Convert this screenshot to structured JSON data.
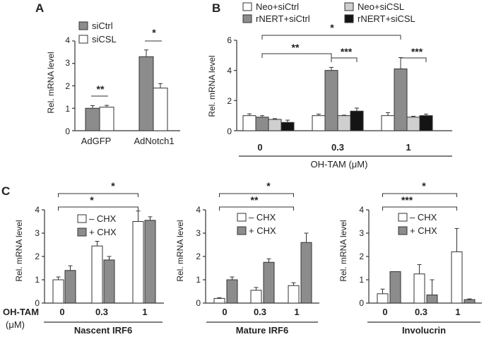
{
  "colors": {
    "white": "#ffffff",
    "mid_gray": "#8c8c8c",
    "light_gray": "#cfcfcf",
    "black": "#141414",
    "axis": "#333333"
  },
  "chart_data": [
    {
      "id": "A",
      "panel_label": "A",
      "type": "bar",
      "ylabel": "Rel. mRNA level",
      "ylim": [
        0,
        4
      ],
      "yticks": [
        "0",
        "1",
        "2",
        "3",
        "4"
      ],
      "categories": [
        "AdGFP",
        "AdNotch1"
      ],
      "series": [
        {
          "name": "siCtrl",
          "color": "#8c8c8c",
          "values": [
            1.0,
            3.3
          ],
          "errors": [
            0.12,
            0.3
          ]
        },
        {
          "name": "siCSL",
          "color": "#ffffff",
          "values": [
            1.05,
            1.9
          ],
          "errors": [
            0.08,
            0.2
          ]
        }
      ],
      "significance": [
        {
          "label": "**",
          "category": 0
        },
        {
          "label": "*",
          "category": 1
        }
      ]
    },
    {
      "id": "B",
      "panel_label": "B",
      "type": "bar",
      "ylabel": "Rel. mRNA level",
      "xlabel": "OH-TAM (μM)",
      "ylim": [
        0,
        6
      ],
      "yticks": [
        "0",
        "2",
        "4",
        "6"
      ],
      "categories": [
        "0",
        "0.3",
        "1"
      ],
      "series": [
        {
          "name": "Neo+siCtrl",
          "color": "#ffffff",
          "values": [
            1.0,
            1.0,
            1.0
          ],
          "errors": [
            0.12,
            0.1,
            0.2
          ]
        },
        {
          "name": "rNERT+siCtrl",
          "color": "#8c8c8c",
          "values": [
            0.9,
            4.0,
            4.1
          ],
          "errors": [
            0.1,
            0.2,
            0.75
          ]
        },
        {
          "name": "Neo+siCSL",
          "color": "#cfcfcf",
          "values": [
            0.75,
            1.0,
            0.9
          ],
          "errors": [
            0.05,
            0.03,
            0.06
          ]
        },
        {
          "name": "rNERT+siCSL",
          "color": "#141414",
          "values": [
            0.55,
            1.3,
            1.0
          ],
          "errors": [
            0.15,
            0.2,
            0.1
          ]
        }
      ],
      "significance": [
        {
          "label": "*",
          "type": "long"
        },
        {
          "label": "**",
          "type": "left"
        },
        {
          "label": "***",
          "type": "mid"
        },
        {
          "label": "***",
          "type": "right"
        }
      ]
    },
    {
      "id": "C1",
      "panel_label": "C",
      "type": "bar",
      "title": "Nascent IRF6",
      "ylabel": "Rel. mRNA level",
      "ylim": [
        0,
        4
      ],
      "yticks": [
        "0",
        "1",
        "2",
        "3",
        "4"
      ],
      "categories": [
        "0",
        "0.3",
        "1"
      ],
      "x_prefix": "OH-TAM",
      "x_prefix_unit": "(μM)",
      "series": [
        {
          "name": "– CHX",
          "color": "#ffffff",
          "values": [
            1.0,
            2.45,
            3.5
          ],
          "errors": [
            0.12,
            0.2,
            0.45
          ]
        },
        {
          "name": "+ CHX",
          "color": "#8c8c8c",
          "values": [
            1.4,
            1.85,
            3.55
          ],
          "errors": [
            0.2,
            0.15,
            0.15
          ]
        }
      ],
      "significance": [
        {
          "label": "*",
          "level": 1
        },
        {
          "label": "*",
          "level": 0
        }
      ]
    },
    {
      "id": "C2",
      "type": "bar",
      "title": "Mature IRF6",
      "ylabel": "Rel. mRNA level",
      "ylim": [
        0,
        4
      ],
      "yticks": [
        "0",
        "1",
        "2",
        "3",
        "4"
      ],
      "categories": [
        "0",
        "0.3",
        "1"
      ],
      "series": [
        {
          "name": "– CHX",
          "color": "#ffffff",
          "values": [
            0.2,
            0.55,
            0.75
          ],
          "errors": [
            0.03,
            0.12,
            0.12
          ]
        },
        {
          "name": "+ CHX",
          "color": "#8c8c8c",
          "values": [
            1.0,
            1.75,
            2.6
          ],
          "errors": [
            0.12,
            0.15,
            0.4
          ]
        }
      ],
      "significance": [
        {
          "label": "*",
          "level": 1
        },
        {
          "label": "**",
          "level": 0
        }
      ]
    },
    {
      "id": "C3",
      "type": "bar",
      "title": "Involucrin",
      "ylabel": "Rel. mRNA level",
      "ylim": [
        0,
        4
      ],
      "yticks": [
        "0",
        "1",
        "2",
        "3",
        "4"
      ],
      "categories": [
        "0",
        "0.3",
        "1"
      ],
      "series": [
        {
          "name": "– CHX",
          "color": "#ffffff",
          "values": [
            0.4,
            1.25,
            2.2
          ],
          "errors": [
            0.2,
            0.4,
            1.0
          ]
        },
        {
          "name": "+ CHX",
          "color": "#8c8c8c",
          "values": [
            1.35,
            0.35,
            0.15
          ],
          "errors": [
            0.0,
            0.65,
            0.03
          ]
        }
      ],
      "significance": [
        {
          "label": "*",
          "level": 1
        },
        {
          "label": "***",
          "level": 0
        }
      ]
    }
  ]
}
